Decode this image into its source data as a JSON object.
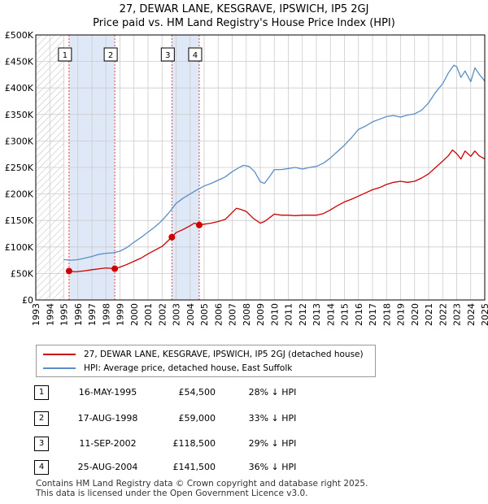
{
  "title_line1": "27, DEWAR LANE, KESGRAVE, IPSWICH, IP5 2GJ",
  "title_line2": "Price paid vs. HM Land Registry's House Price Index (HPI)",
  "colors": {
    "property": "#cc0000",
    "hpi": "#5b8ec4",
    "shade": "#dfe8f6",
    "grid": "#cccccc",
    "sale_vline": "#dd4444"
  },
  "chart_data": {
    "type": "line",
    "title": "Price paid vs. HM Land Registry's House Price Index (HPI)",
    "xlabel": "",
    "ylabel": "",
    "xlim": [
      1993,
      2025
    ],
    "ylim": [
      0,
      500000
    ],
    "x_ticks": [
      1993,
      1994,
      1995,
      1996,
      1997,
      1998,
      1999,
      2000,
      2001,
      2002,
      2003,
      2004,
      2005,
      2006,
      2007,
      2008,
      2009,
      2010,
      2011,
      2012,
      2013,
      2014,
      2015,
      2016,
      2017,
      2018,
      2019,
      2020,
      2021,
      2022,
      2023,
      2024,
      2025
    ],
    "y_ticks": [
      0,
      50000,
      100000,
      150000,
      200000,
      250000,
      300000,
      350000,
      400000,
      450000,
      500000
    ],
    "y_tick_labels": [
      "£0",
      "£50K",
      "£100K",
      "£150K",
      "£200K",
      "£250K",
      "£300K",
      "£350K",
      "£400K",
      "£450K",
      "£500K"
    ],
    "hatched_until": 1995.0,
    "shaded_spans": [
      [
        1995.37,
        1998.63
      ],
      [
        2002.7,
        2004.65
      ]
    ],
    "grid": true,
    "series": [
      {
        "name": "27, DEWAR LANE, KESGRAVE, IPSWICH, IP5 2GJ (detached house)",
        "color": "#cc0000",
        "x": [
          1995.37,
          1995.8,
          1996.5,
          1997.0,
          1997.6,
          1998.0,
          1998.63,
          1999.0,
          1999.5,
          2000.0,
          2000.5,
          2001.0,
          2001.5,
          2002.0,
          2002.4,
          2002.7,
          2003.0,
          2003.5,
          2004.0,
          2004.3,
          2004.65,
          2005.0,
          2005.5,
          2006.0,
          2006.5,
          2007.0,
          2007.3,
          2007.6,
          2008.0,
          2008.5,
          2009.0,
          2009.3,
          2009.7,
          2010.0,
          2010.5,
          2011.0,
          2011.5,
          2012.0,
          2012.5,
          2013.0,
          2013.5,
          2014.0,
          2014.5,
          2015.0,
          2015.5,
          2016.0,
          2016.5,
          2017.0,
          2017.5,
          2018.0,
          2018.5,
          2019.0,
          2019.5,
          2020.0,
          2020.5,
          2021.0,
          2021.5,
          2022.0,
          2022.4,
          2022.7,
          2023.0,
          2023.3,
          2023.6,
          2024.0,
          2024.3,
          2024.6,
          2025.0
        ],
        "y": [
          54500,
          53000,
          55000,
          57000,
          59000,
          60500,
          59000,
          62000,
          67000,
          73000,
          79000,
          87000,
          94000,
          101000,
          111000,
          118500,
          127000,
          133000,
          140000,
          145000,
          141500,
          143000,
          145000,
          148000,
          152000,
          165000,
          173000,
          171000,
          167000,
          154000,
          145000,
          148000,
          156000,
          162000,
          160000,
          160000,
          159000,
          160000,
          160000,
          160000,
          163000,
          170000,
          178000,
          185000,
          190000,
          196000,
          202000,
          208000,
          212000,
          218000,
          222000,
          224000,
          222000,
          224000,
          230000,
          238000,
          250000,
          262000,
          272000,
          283000,
          276000,
          266000,
          281000,
          271000,
          281000,
          272000,
          266000
        ]
      },
      {
        "name": "HPI: Average price, detached house, East Suffolk",
        "color": "#5b8ec4",
        "x": [
          1995.0,
          1995.5,
          1996.0,
          1996.5,
          1997.0,
          1997.5,
          1998.0,
          1998.5,
          1999.0,
          1999.5,
          2000.0,
          2000.5,
          2001.0,
          2001.5,
          2002.0,
          2002.5,
          2003.0,
          2003.5,
          2004.0,
          2004.5,
          2005.0,
          2005.5,
          2006.0,
          2006.5,
          2007.0,
          2007.5,
          2007.8,
          2008.2,
          2008.6,
          2009.0,
          2009.3,
          2009.7,
          2010.0,
          2010.5,
          2011.0,
          2011.5,
          2012.0,
          2012.5,
          2013.0,
          2013.5,
          2014.0,
          2014.5,
          2015.0,
          2015.5,
          2016.0,
          2016.5,
          2017.0,
          2017.5,
          2018.0,
          2018.5,
          2019.0,
          2019.5,
          2020.0,
          2020.5,
          2021.0,
          2021.5,
          2022.0,
          2022.4,
          2022.8,
          2023.0,
          2023.3,
          2023.6,
          2024.0,
          2024.3,
          2024.6,
          2025.0
        ],
        "y": [
          76000,
          75000,
          76000,
          79000,
          82000,
          86000,
          88000,
          89000,
          92000,
          99000,
          109000,
          118000,
          128000,
          138000,
          150000,
          165000,
          182000,
          192000,
          200000,
          208000,
          215000,
          220000,
          226000,
          232000,
          242000,
          250000,
          254000,
          252000,
          242000,
          223000,
          220000,
          234000,
          246000,
          246000,
          248000,
          250000,
          247000,
          250000,
          252000,
          258000,
          268000,
          280000,
          292000,
          306000,
          322000,
          328000,
          336000,
          341000,
          346000,
          348000,
          345000,
          349000,
          351000,
          358000,
          372000,
          392000,
          408000,
          428000,
          443000,
          440000,
          420000,
          432000,
          412000,
          438000,
          426000,
          413000
        ]
      }
    ],
    "sale_markers": [
      {
        "label": "1",
        "x": 1995.37,
        "y": 54500
      },
      {
        "label": "2",
        "x": 1998.63,
        "y": 59000
      },
      {
        "label": "3",
        "x": 2002.7,
        "y": 118500
      },
      {
        "label": "4",
        "x": 2004.65,
        "y": 141500
      }
    ]
  },
  "legend": {
    "property_label": "27, DEWAR LANE, KESGRAVE, IPSWICH, IP5 2GJ (detached house)",
    "hpi_label": "HPI: Average price, detached house, East Suffolk"
  },
  "sales": [
    {
      "num": "1",
      "date": "16-MAY-1995",
      "price": "£54,500",
      "hpi": "28% ↓ HPI"
    },
    {
      "num": "2",
      "date": "17-AUG-1998",
      "price": "£59,000",
      "hpi": "33% ↓ HPI"
    },
    {
      "num": "3",
      "date": "11-SEP-2002",
      "price": "£118,500",
      "hpi": "29% ↓ HPI"
    },
    {
      "num": "4",
      "date": "25-AUG-2004",
      "price": "£141,500",
      "hpi": "36% ↓ HPI"
    }
  ],
  "footer_line1": "Contains HM Land Registry data © Crown copyright and database right 2025.",
  "footer_line2": "This data is licensed under the Open Government Licence v3.0."
}
